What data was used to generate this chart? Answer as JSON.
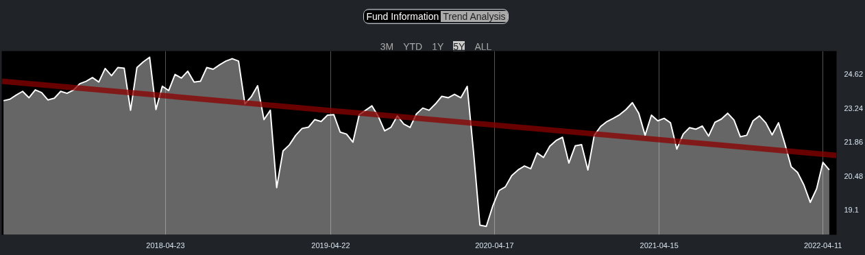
{
  "chart_data": {
    "type": "area",
    "annotations": [
      "Fund Information",
      "Trend Analysis",
      "3M",
      "YTD",
      "1Y",
      "5Y",
      "ALL"
    ],
    "x": [
      "2017-05-01",
      "2017-05-15",
      "2017-05-29",
      "2017-06-12",
      "2017-06-26",
      "2017-07-10",
      "2017-07-24",
      "2017-08-07",
      "2017-08-21",
      "2017-09-04",
      "2017-09-18",
      "2017-10-02",
      "2017-10-16",
      "2017-10-30",
      "2017-11-13",
      "2017-11-27",
      "2017-12-11",
      "2017-12-25",
      "2018-01-08",
      "2018-01-22",
      "2018-02-05",
      "2018-02-19",
      "2018-03-05",
      "2018-03-19",
      "2018-04-02",
      "2018-04-16",
      "2018-04-30",
      "2018-05-14",
      "2018-05-28",
      "2018-06-11",
      "2018-06-25",
      "2018-07-09",
      "2018-07-23",
      "2018-08-06",
      "2018-08-20",
      "2018-09-03",
      "2018-09-17",
      "2018-10-01",
      "2018-10-15",
      "2018-10-29",
      "2018-11-12",
      "2018-11-26",
      "2018-12-10",
      "2018-12-24",
      "2019-01-07",
      "2019-01-21",
      "2019-02-04",
      "2019-02-18",
      "2019-03-04",
      "2019-03-18",
      "2019-04-01",
      "2019-04-15",
      "2019-04-29",
      "2019-05-13",
      "2019-05-27",
      "2019-06-10",
      "2019-06-24",
      "2019-07-08",
      "2019-07-22",
      "2019-08-05",
      "2019-08-19",
      "2019-09-02",
      "2019-09-16",
      "2019-09-30",
      "2019-10-14",
      "2019-10-28",
      "2019-11-11",
      "2019-11-25",
      "2019-12-09",
      "2019-12-23",
      "2020-01-06",
      "2020-01-20",
      "2020-02-03",
      "2020-02-17",
      "2020-03-02",
      "2020-03-16",
      "2020-03-30",
      "2020-04-13",
      "2020-04-27",
      "2020-05-11",
      "2020-05-25",
      "2020-06-08",
      "2020-06-22",
      "2020-07-06",
      "2020-07-20",
      "2020-08-03",
      "2020-08-17",
      "2020-08-31",
      "2020-09-14",
      "2020-09-28",
      "2020-10-12",
      "2020-10-26",
      "2020-11-09",
      "2020-11-23",
      "2020-12-07",
      "2020-12-21",
      "2021-01-04",
      "2021-01-18",
      "2021-02-01",
      "2021-02-15",
      "2021-03-01",
      "2021-03-15",
      "2021-03-29",
      "2021-04-12",
      "2021-04-26",
      "2021-05-10",
      "2021-05-24",
      "2021-06-07",
      "2021-06-21",
      "2021-07-05",
      "2021-07-19",
      "2021-08-02",
      "2021-08-16",
      "2021-08-30",
      "2021-09-13",
      "2021-09-27",
      "2021-10-11",
      "2021-10-25",
      "2021-11-08",
      "2021-11-22",
      "2021-12-06",
      "2021-12-20",
      "2022-01-03",
      "2022-01-17",
      "2022-01-31",
      "2022-02-14",
      "2022-02-28",
      "2022-03-14",
      "2022-03-28",
      "2022-04-11",
      "2022-04-25"
    ],
    "series": [
      {
        "color": "#ffffff",
        "values": [
          23.54,
          23.6,
          23.77,
          23.92,
          23.66,
          23.98,
          23.87,
          23.57,
          23.64,
          23.92,
          23.84,
          23.97,
          24.23,
          24.33,
          24.48,
          24.3,
          24.85,
          24.56,
          24.89,
          24.86,
          23.15,
          24.89,
          25.12,
          25.31,
          23.18,
          24.13,
          23.95,
          24.61,
          24.46,
          24.74,
          24.3,
          24.33,
          24.89,
          24.82,
          25.0,
          25.15,
          25.25,
          25.15,
          23.41,
          23.7,
          24.15,
          22.77,
          23.15,
          20.0,
          21.49,
          21.74,
          22.13,
          22.41,
          22.46,
          22.77,
          22.69,
          22.95,
          22.97,
          22.26,
          22.18,
          21.85,
          22.97,
          23.15,
          23.33,
          22.9,
          22.31,
          22.46,
          22.92,
          22.59,
          22.45,
          23.0,
          23.24,
          23.15,
          23.41,
          23.72,
          23.66,
          23.8,
          23.66,
          24.12,
          21.43,
          18.47,
          18.42,
          19.24,
          19.88,
          20.03,
          20.49,
          20.72,
          20.88,
          20.77,
          21.41,
          21.23,
          21.69,
          21.92,
          22.05,
          21.0,
          21.7,
          21.75,
          20.72,
          22.13,
          22.49,
          22.69,
          22.82,
          22.97,
          23.18,
          23.46,
          23.03,
          22.13,
          22.95,
          22.72,
          22.82,
          22.64,
          21.57,
          22.18,
          22.44,
          22.38,
          22.51,
          22.1,
          22.66,
          22.79,
          23.03,
          22.75,
          22.07,
          22.13,
          22.72,
          22.92,
          22.64,
          22.15,
          22.64,
          21.79,
          20.85,
          20.62,
          20.11,
          19.4,
          19.95,
          21.03,
          20.72
        ]
      },
      {
        "type": "line",
        "color": "#8b0000",
        "x": [
          "2017-04-27",
          "2022-05-11"
        ],
        "values": [
          24.33,
          21.31
        ]
      }
    ],
    "xlim": [
      "2017-04-27",
      "2022-05-11"
    ],
    "xticks": [
      "2018-04-23",
      "2019-04-22",
      "2020-04-17",
      "2021-04-15",
      "2022-04-11"
    ],
    "ylim": [
      18.08,
      25.56
    ],
    "yticks": [
      24.62,
      23.24,
      21.86,
      20.48,
      19.1
    ],
    "grid": "x"
  }
}
